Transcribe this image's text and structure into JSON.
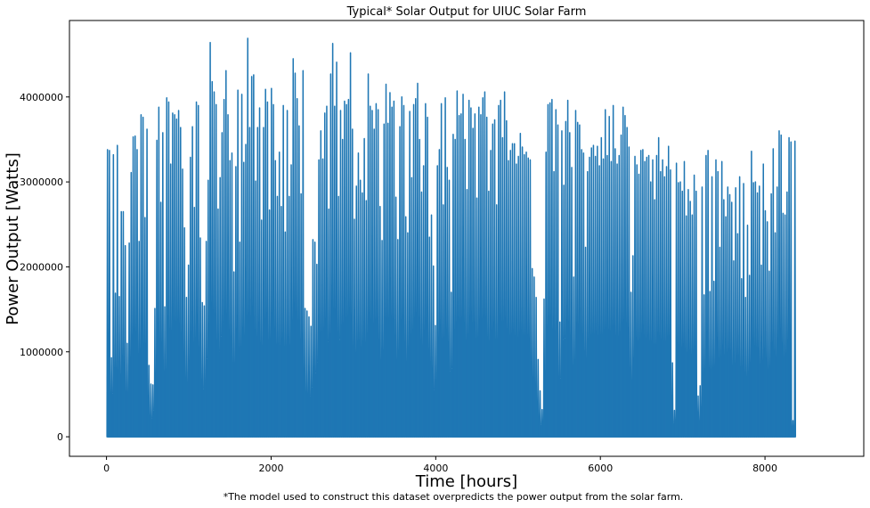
{
  "chart_data": {
    "type": "line",
    "title": "Typical* Solar Output for UIUC Solar Farm",
    "xlabel": "Time [hours]",
    "ylabel": "Power Output [Watts]",
    "footnote": "*The model used to construct this dataset overpredicts the power output from the solar farm.",
    "xlim": [
      -450,
      9200
    ],
    "ylim": [
      -230000,
      4900000
    ],
    "x_ticks": [
      0,
      2000,
      4000,
      6000,
      8000
    ],
    "x_tick_labels": [
      "0",
      "2000",
      "4000",
      "6000",
      "8000"
    ],
    "y_ticks": [
      0,
      1000000,
      2000000,
      3000000,
      4000000
    ],
    "y_tick_labels": [
      "0",
      "1000000",
      "2000000",
      "3000000",
      "4000000"
    ],
    "grid": false,
    "series": [
      {
        "color": "#1f77b4",
        "x_start": 0,
        "x_step": 24,
        "daily_peaks": [
          3380000,
          3370000,
          930000,
          3320000,
          1690000,
          3430000,
          1650000,
          2650000,
          2650000,
          2250000,
          1100000,
          2280000,
          3110000,
          3530000,
          3540000,
          3380000,
          2300000,
          3790000,
          3760000,
          2580000,
          3620000,
          840000,
          620000,
          610000,
          1510000,
          3490000,
          3880000,
          2760000,
          3580000,
          1530000,
          3990000,
          3940000,
          3210000,
          3810000,
          3790000,
          3740000,
          3840000,
          3640000,
          3150000,
          2460000,
          1640000,
          2020000,
          3290000,
          3650000,
          2700000,
          3940000,
          3900000,
          2340000,
          1580000,
          1540000,
          2300000,
          3020000,
          4640000,
          4180000,
          4060000,
          3910000,
          2680000,
          3050000,
          3580000,
          3970000,
          4310000,
          3790000,
          3250000,
          3340000,
          1940000,
          3180000,
          4080000,
          2290000,
          4030000,
          3230000,
          3440000,
          4690000,
          3640000,
          4240000,
          4260000,
          3010000,
          3640000,
          3870000,
          2550000,
          3640000,
          4090000,
          3940000,
          2670000,
          4100000,
          3910000,
          3250000,
          2830000,
          3350000,
          2710000,
          3900000,
          2410000,
          3840000,
          2830000,
          3200000,
          4450000,
          4280000,
          3980000,
          3660000,
          2860000,
          4310000,
          1510000,
          1480000,
          1410000,
          1300000,
          2320000,
          2290000,
          2030000,
          3260000,
          3600000,
          3270000,
          3810000,
          3890000,
          2680000,
          4270000,
          4630000,
          3890000,
          4410000,
          2830000,
          3840000,
          3500000,
          3950000,
          3910000,
          3970000,
          4520000,
          3620000,
          2560000,
          2950000,
          3340000,
          3020000,
          2870000,
          3510000,
          2780000,
          4270000,
          3890000,
          3840000,
          3620000,
          3920000,
          3850000,
          2710000,
          2310000,
          3680000,
          4150000,
          3690000,
          4050000,
          3880000,
          3950000,
          2820000,
          2320000,
          3650000,
          4000000,
          3900000,
          2590000,
          2400000,
          3830000,
          3050000,
          3910000,
          3980000,
          4160000,
          3500000,
          2880000,
          3190000,
          3920000,
          3760000,
          2350000,
          2610000,
          2010000,
          1310000,
          3190000,
          3380000,
          3920000,
          2730000,
          3990000,
          3170000,
          3020000,
          1700000,
          3560000,
          3500000,
          4070000,
          3780000,
          3800000,
          4030000,
          3500000,
          2910000,
          3960000,
          3870000,
          3630000,
          3800000,
          2810000,
          3880000,
          3790000,
          3990000,
          4060000,
          3760000,
          2890000,
          3370000,
          3680000,
          3730000,
          2730000,
          3900000,
          3960000,
          3520000,
          4060000,
          3720000,
          3250000,
          3370000,
          3450000,
          3450000,
          3210000,
          3300000,
          3570000,
          3410000,
          3320000,
          3350000,
          3280000,
          3260000,
          1980000,
          1880000,
          1640000,
          910000,
          540000,
          320000,
          1620000,
          3350000,
          3910000,
          3930000,
          3970000,
          3120000,
          3850000,
          3670000,
          1350000,
          3600000,
          2960000,
          3710000,
          3960000,
          3580000,
          3170000,
          1880000,
          3840000,
          3700000,
          3670000,
          3380000,
          3340000,
          2230000,
          3120000,
          3290000,
          3400000,
          3430000,
          3300000,
          3420000,
          3190000,
          3520000,
          3270000,
          3850000,
          3310000,
          3770000,
          3240000,
          3900000,
          3390000,
          3210000,
          3310000,
          3550000,
          3880000,
          3780000,
          3640000,
          3410000,
          1700000,
          2130000,
          3300000,
          3200000,
          3090000,
          3370000,
          3380000,
          3240000,
          3290000,
          3310000,
          3000000,
          3260000,
          2790000,
          3310000,
          3520000,
          3120000,
          3260000,
          3060000,
          3180000,
          3420000,
          3140000,
          870000,
          310000,
          3220000,
          2990000,
          3000000,
          2890000,
          3240000,
          2600000,
          2910000,
          2770000,
          2610000,
          3080000,
          2890000,
          480000,
          600000,
          2940000,
          1670000,
          3310000,
          3370000,
          1710000,
          3060000,
          1830000,
          3260000,
          3120000,
          2230000,
          3240000,
          2790000,
          2590000,
          2940000,
          2850000,
          2760000,
          2070000,
          2930000,
          2390000,
          3060000,
          1860000,
          2980000,
          1640000,
          2490000,
          1900000,
          3360000,
          2990000,
          3000000,
          2870000,
          2950000,
          2020000,
          3210000,
          2660000,
          2530000,
          1950000,
          2860000,
          3390000,
          2400000,
          2940000,
          3600000,
          3550000,
          2630000,
          2610000,
          2880000,
          3520000,
          3470000,
          190000,
          3480000
        ]
      }
    ]
  }
}
